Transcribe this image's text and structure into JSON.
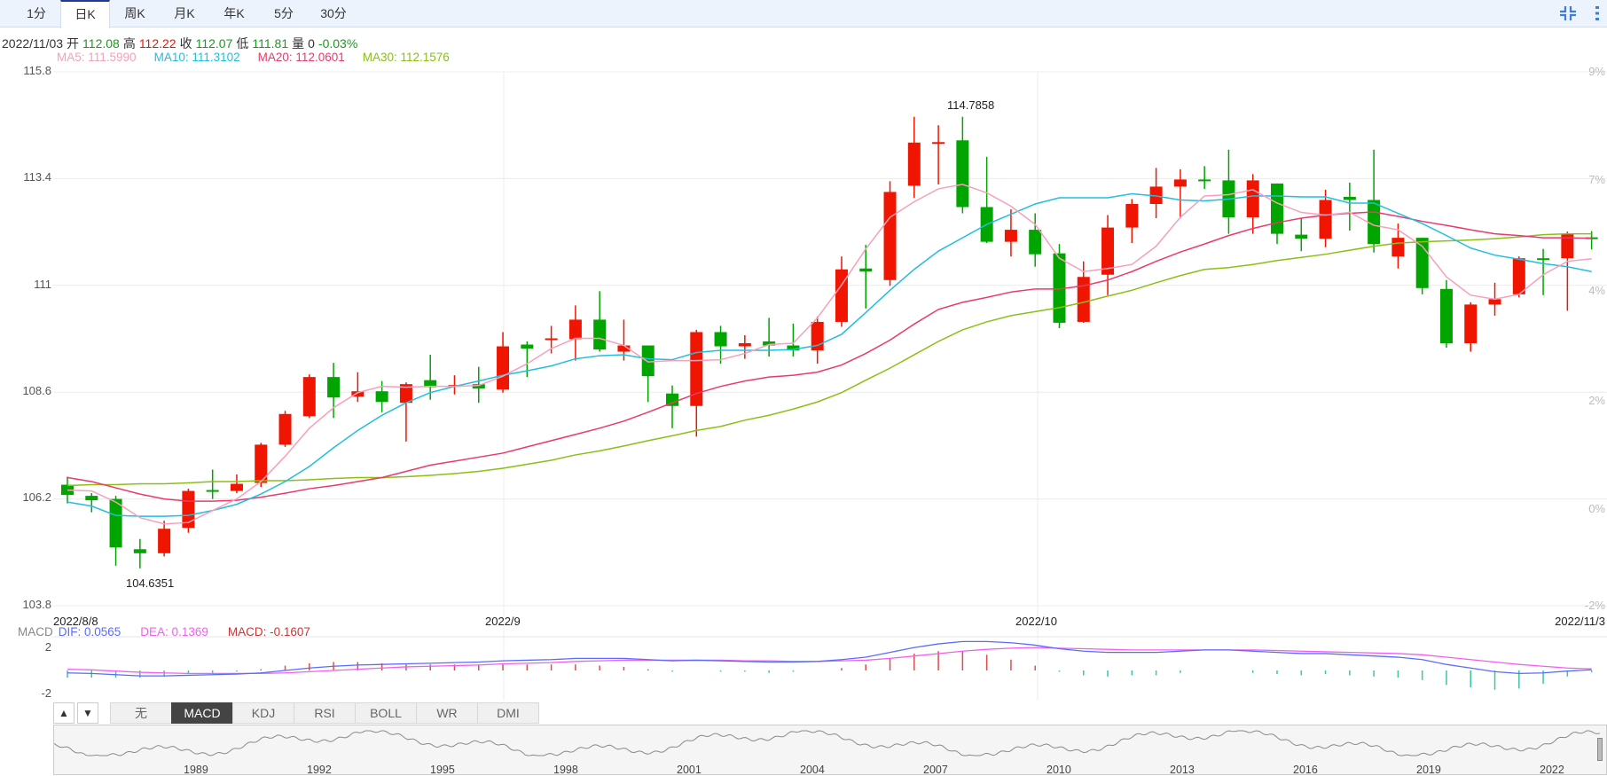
{
  "tabs": [
    {
      "label": "1分"
    },
    {
      "label": "日K"
    },
    {
      "label": "周K"
    },
    {
      "label": "月K"
    },
    {
      "label": "年K"
    },
    {
      "label": "5分"
    },
    {
      "label": "30分"
    }
  ],
  "active_tab": "日K",
  "icons": {
    "compress": "compress-icon",
    "more": "more-vertical-icon"
  },
  "info": {
    "date": "2022/11/03",
    "open_label": "开",
    "open": "112.08",
    "high_label": "高",
    "high": "112.22",
    "close_label": "收",
    "close": "112.07",
    "low_label": "低",
    "low": "111.81",
    "volume_label": "量",
    "volume": "0",
    "change": "-0.03%"
  },
  "ma_legend": {
    "ma5": "MA5: 111.5990",
    "ma10": "MA10: 111.3102",
    "ma20": "MA20: 112.0601",
    "ma30": "MA30: 112.1576"
  },
  "colors": {
    "up": "#f01500",
    "down": "#00a500",
    "ma5": "#f7a0bb",
    "ma10": "#22bde0",
    "ma20": "#ea3a6c",
    "ma30": "#8cbf16",
    "dif": "#5a6cff",
    "dea": "#f060f0",
    "macd": "#c83838",
    "hist_up": "#e24b4b",
    "hist_down": "#3cc4a6"
  },
  "chart_data": {
    "type": "candlestick",
    "y_axis_ticks": [
      "115.8",
      "113.4",
      "111",
      "108.6",
      "106.2",
      "103.8"
    ],
    "ylim": [
      103.8,
      115.8
    ],
    "right_axis_ticks": [
      "9%",
      "7%",
      "4%",
      "2%",
      "0%",
      "-2%"
    ],
    "x_axis_labels": [
      "2022/8/8",
      "2022/9",
      "2022/10",
      "2022/11/3"
    ],
    "max_label": "114.7858",
    "min_label": "104.6351",
    "ohlc": [
      [
        106.52,
        106.7,
        106.1,
        106.29
      ],
      [
        106.27,
        106.33,
        105.9,
        106.17
      ],
      [
        106.2,
        106.27,
        104.7,
        105.11
      ],
      [
        105.07,
        105.3,
        104.64,
        104.98
      ],
      [
        104.98,
        105.71,
        104.91,
        105.53
      ],
      [
        105.55,
        106.43,
        105.44,
        106.38
      ],
      [
        106.4,
        106.86,
        106.2,
        106.36
      ],
      [
        106.38,
        106.75,
        106.33,
        106.54
      ],
      [
        106.56,
        107.46,
        106.47,
        107.42
      ],
      [
        107.42,
        108.18,
        107.37,
        108.11
      ],
      [
        108.06,
        109.0,
        108.02,
        108.94
      ],
      [
        108.94,
        109.26,
        108.02,
        108.48
      ],
      [
        108.5,
        109.05,
        108.38,
        108.62
      ],
      [
        108.62,
        108.85,
        108.15,
        108.38
      ],
      [
        108.36,
        108.82,
        107.49,
        108.78
      ],
      [
        108.87,
        109.44,
        108.43,
        108.71
      ],
      [
        108.74,
        108.98,
        108.55,
        108.76
      ],
      [
        108.78,
        109.17,
        108.36,
        108.68
      ],
      [
        108.66,
        109.95,
        108.59,
        109.63
      ],
      [
        109.67,
        109.74,
        108.94,
        109.58
      ],
      [
        109.78,
        110.09,
        109.47,
        109.81
      ],
      [
        109.79,
        110.55,
        109.31,
        110.23
      ],
      [
        110.23,
        110.87,
        109.51,
        109.56
      ],
      [
        109.51,
        110.23,
        109.31,
        109.65
      ],
      [
        109.65,
        109.65,
        108.38,
        108.96
      ],
      [
        108.57,
        108.75,
        107.79,
        108.29
      ],
      [
        108.29,
        110.0,
        107.6,
        109.95
      ],
      [
        109.95,
        110.09,
        109.24,
        109.63
      ],
      [
        109.63,
        109.88,
        109.35,
        109.7
      ],
      [
        109.74,
        110.27,
        109.4,
        109.65
      ],
      [
        109.65,
        110.14,
        109.4,
        109.54
      ],
      [
        109.54,
        110.3,
        109.24,
        110.18
      ],
      [
        110.18,
        111.65,
        110.07,
        111.36
      ],
      [
        111.38,
        111.91,
        110.48,
        111.31
      ],
      [
        111.12,
        113.34,
        110.99,
        113.1
      ],
      [
        113.24,
        114.79,
        112.97,
        114.21
      ],
      [
        114.2,
        114.6,
        113.27,
        114.22
      ],
      [
        114.26,
        114.79,
        112.62,
        112.76
      ],
      [
        112.76,
        113.89,
        111.95,
        111.98
      ],
      [
        111.98,
        112.71,
        111.65,
        112.25
      ],
      [
        112.25,
        112.62,
        111.42,
        111.7
      ],
      [
        111.72,
        111.93,
        110.04,
        110.16
      ],
      [
        110.18,
        111.54,
        110.16,
        111.19
      ],
      [
        111.24,
        112.58,
        110.78,
        112.3
      ],
      [
        112.3,
        112.94,
        111.95,
        112.83
      ],
      [
        112.83,
        113.64,
        112.51,
        113.22
      ],
      [
        113.22,
        113.61,
        112.51,
        113.38
      ],
      [
        113.38,
        113.68,
        113.17,
        113.36
      ],
      [
        113.36,
        114.05,
        112.16,
        112.53
      ],
      [
        112.53,
        113.5,
        112.16,
        113.36
      ],
      [
        113.29,
        113.29,
        111.93,
        112.16
      ],
      [
        112.14,
        112.51,
        111.77,
        112.05
      ],
      [
        112.05,
        113.15,
        111.86,
        112.92
      ],
      [
        112.99,
        113.31,
        112.23,
        112.92
      ],
      [
        112.92,
        114.05,
        111.74,
        111.93
      ],
      [
        111.65,
        112.39,
        111.38,
        112.07
      ],
      [
        112.07,
        112.07,
        110.8,
        110.94
      ],
      [
        110.92,
        111.12,
        109.6,
        109.7
      ],
      [
        109.7,
        110.62,
        109.51,
        110.57
      ],
      [
        110.57,
        111.06,
        110.32,
        110.69
      ],
      [
        110.8,
        111.65,
        110.73,
        111.61
      ],
      [
        111.61,
        111.82,
        110.78,
        111.59
      ],
      [
        111.61,
        112.21,
        110.43,
        112.16
      ],
      [
        112.08,
        112.22,
        111.81,
        112.07
      ]
    ],
    "ma5": [
      106.4,
      106.38,
      106.13,
      105.78,
      105.64,
      105.67,
      105.94,
      106.2,
      106.59,
      107.16,
      107.79,
      108.25,
      108.59,
      108.73,
      108.71,
      108.73,
      108.73,
      108.75,
      108.96,
      109.24,
      109.58,
      109.81,
      109.81,
      109.65,
      109.28,
      109.31,
      109.31,
      109.33,
      109.47,
      109.67,
      109.7,
      110.27,
      111.01,
      111.82,
      112.53,
      112.88,
      113.17,
      113.27,
      113.08,
      112.78,
      112.37,
      111.61,
      111.31,
      111.38,
      111.47,
      111.88,
      112.53,
      113.01,
      113.04,
      113.15,
      112.85,
      112.64,
      112.58,
      112.64,
      112.35,
      112.25,
      111.88,
      111.19,
      110.78,
      110.69,
      110.8,
      111.24,
      111.54,
      111.6
    ],
    "ma10": [
      106.13,
      106.04,
      105.83,
      105.81,
      105.81,
      105.83,
      105.94,
      106.08,
      106.31,
      106.59,
      106.93,
      107.35,
      107.74,
      108.08,
      108.36,
      108.59,
      108.73,
      108.85,
      108.98,
      109.08,
      109.19,
      109.35,
      109.42,
      109.44,
      109.35,
      109.33,
      109.49,
      109.54,
      109.54,
      109.54,
      109.56,
      109.65,
      109.9,
      110.39,
      110.89,
      111.36,
      111.77,
      112.07,
      112.37,
      112.6,
      112.83,
      112.97,
      112.97,
      112.97,
      113.06,
      113.01,
      112.92,
      112.9,
      112.94,
      113.01,
      113.01,
      112.99,
      112.99,
      112.85,
      112.85,
      112.62,
      112.39,
      112.12,
      111.84,
      111.68,
      111.59,
      111.49,
      111.42,
      111.31
    ],
    "ma20": [
      106.68,
      106.59,
      106.45,
      106.31,
      106.2,
      106.15,
      106.15,
      106.17,
      106.24,
      106.33,
      106.43,
      106.5,
      106.59,
      106.68,
      106.82,
      106.96,
      107.05,
      107.14,
      107.23,
      107.37,
      107.51,
      107.65,
      107.79,
      107.95,
      108.15,
      108.36,
      108.57,
      108.73,
      108.85,
      108.94,
      108.98,
      109.05,
      109.21,
      109.47,
      109.77,
      110.13,
      110.46,
      110.62,
      110.73,
      110.85,
      110.92,
      110.92,
      110.99,
      111.12,
      111.31,
      111.54,
      111.75,
      111.93,
      112.12,
      112.28,
      112.41,
      112.51,
      112.58,
      112.62,
      112.65,
      112.55,
      112.44,
      112.35,
      112.25,
      112.16,
      112.12,
      112.07,
      112.07,
      112.06
    ],
    "ma30": [
      106.5,
      106.52,
      106.52,
      106.54,
      106.54,
      106.56,
      106.59,
      106.59,
      106.61,
      106.61,
      106.63,
      106.66,
      106.68,
      106.68,
      106.7,
      106.73,
      106.77,
      106.82,
      106.89,
      106.98,
      107.07,
      107.19,
      107.28,
      107.39,
      107.51,
      107.62,
      107.74,
      107.83,
      107.97,
      108.08,
      108.22,
      108.38,
      108.59,
      108.87,
      109.14,
      109.44,
      109.74,
      110.0,
      110.18,
      110.32,
      110.41,
      110.5,
      110.62,
      110.76,
      110.89,
      111.06,
      111.22,
      111.36,
      111.4,
      111.47,
      111.56,
      111.63,
      111.7,
      111.79,
      111.88,
      111.95,
      111.98,
      112.0,
      112.02,
      112.05,
      112.09,
      112.14,
      112.16,
      112.16
    ],
    "macd": {
      "legend_name": "MACD",
      "dif_label": "DIF: 0.0565",
      "dea_label": "DEA: 0.1369",
      "macd_label": "MACD: -0.1607",
      "y_ticks": [
        "2",
        "-2"
      ],
      "ylim": [
        -2.5,
        2.5
      ],
      "dif": [
        -0.2,
        -0.25,
        -0.35,
        -0.45,
        -0.45,
        -0.4,
        -0.35,
        -0.3,
        -0.2,
        0.0,
        0.2,
        0.35,
        0.45,
        0.5,
        0.55,
        0.6,
        0.65,
        0.7,
        0.8,
        0.85,
        0.9,
        1.0,
        1.0,
        1.0,
        0.9,
        0.8,
        0.85,
        0.8,
        0.75,
        0.7,
        0.7,
        0.75,
        0.9,
        1.1,
        1.5,
        1.9,
        2.2,
        2.4,
        2.4,
        2.3,
        2.1,
        1.8,
        1.6,
        1.5,
        1.5,
        1.5,
        1.6,
        1.7,
        1.7,
        1.6,
        1.5,
        1.4,
        1.4,
        1.3,
        1.2,
        1.1,
        0.9,
        0.5,
        0.2,
        -0.1,
        -0.25,
        -0.2,
        -0.05,
        0.0565
      ],
      "dea": [
        0.1,
        0.05,
        -0.05,
        -0.15,
        -0.2,
        -0.25,
        -0.25,
        -0.25,
        -0.25,
        -0.2,
        -0.1,
        0.0,
        0.1,
        0.2,
        0.3,
        0.35,
        0.4,
        0.45,
        0.55,
        0.6,
        0.65,
        0.75,
        0.8,
        0.85,
        0.85,
        0.85,
        0.85,
        0.85,
        0.8,
        0.8,
        0.75,
        0.75,
        0.8,
        0.85,
        1.0,
        1.2,
        1.4,
        1.6,
        1.75,
        1.85,
        1.9,
        1.85,
        1.8,
        1.75,
        1.7,
        1.7,
        1.7,
        1.7,
        1.7,
        1.7,
        1.65,
        1.6,
        1.55,
        1.5,
        1.45,
        1.4,
        1.3,
        1.1,
        0.9,
        0.7,
        0.5,
        0.35,
        0.2,
        0.1369
      ]
    }
  },
  "indicator_tabs": [
    {
      "label": "无"
    },
    {
      "label": "MACD"
    },
    {
      "label": "KDJ"
    },
    {
      "label": "RSI"
    },
    {
      "label": "BOLL"
    },
    {
      "label": "WR"
    },
    {
      "label": "DMI"
    }
  ],
  "active_indicator": "MACD",
  "arrows": {
    "up": "▲",
    "down": "▼"
  },
  "navigator": {
    "years": [
      "1989",
      "1992",
      "1995",
      "1998",
      "2001",
      "2004",
      "2007",
      "2010",
      "2013",
      "2016",
      "2019",
      "2022"
    ]
  }
}
